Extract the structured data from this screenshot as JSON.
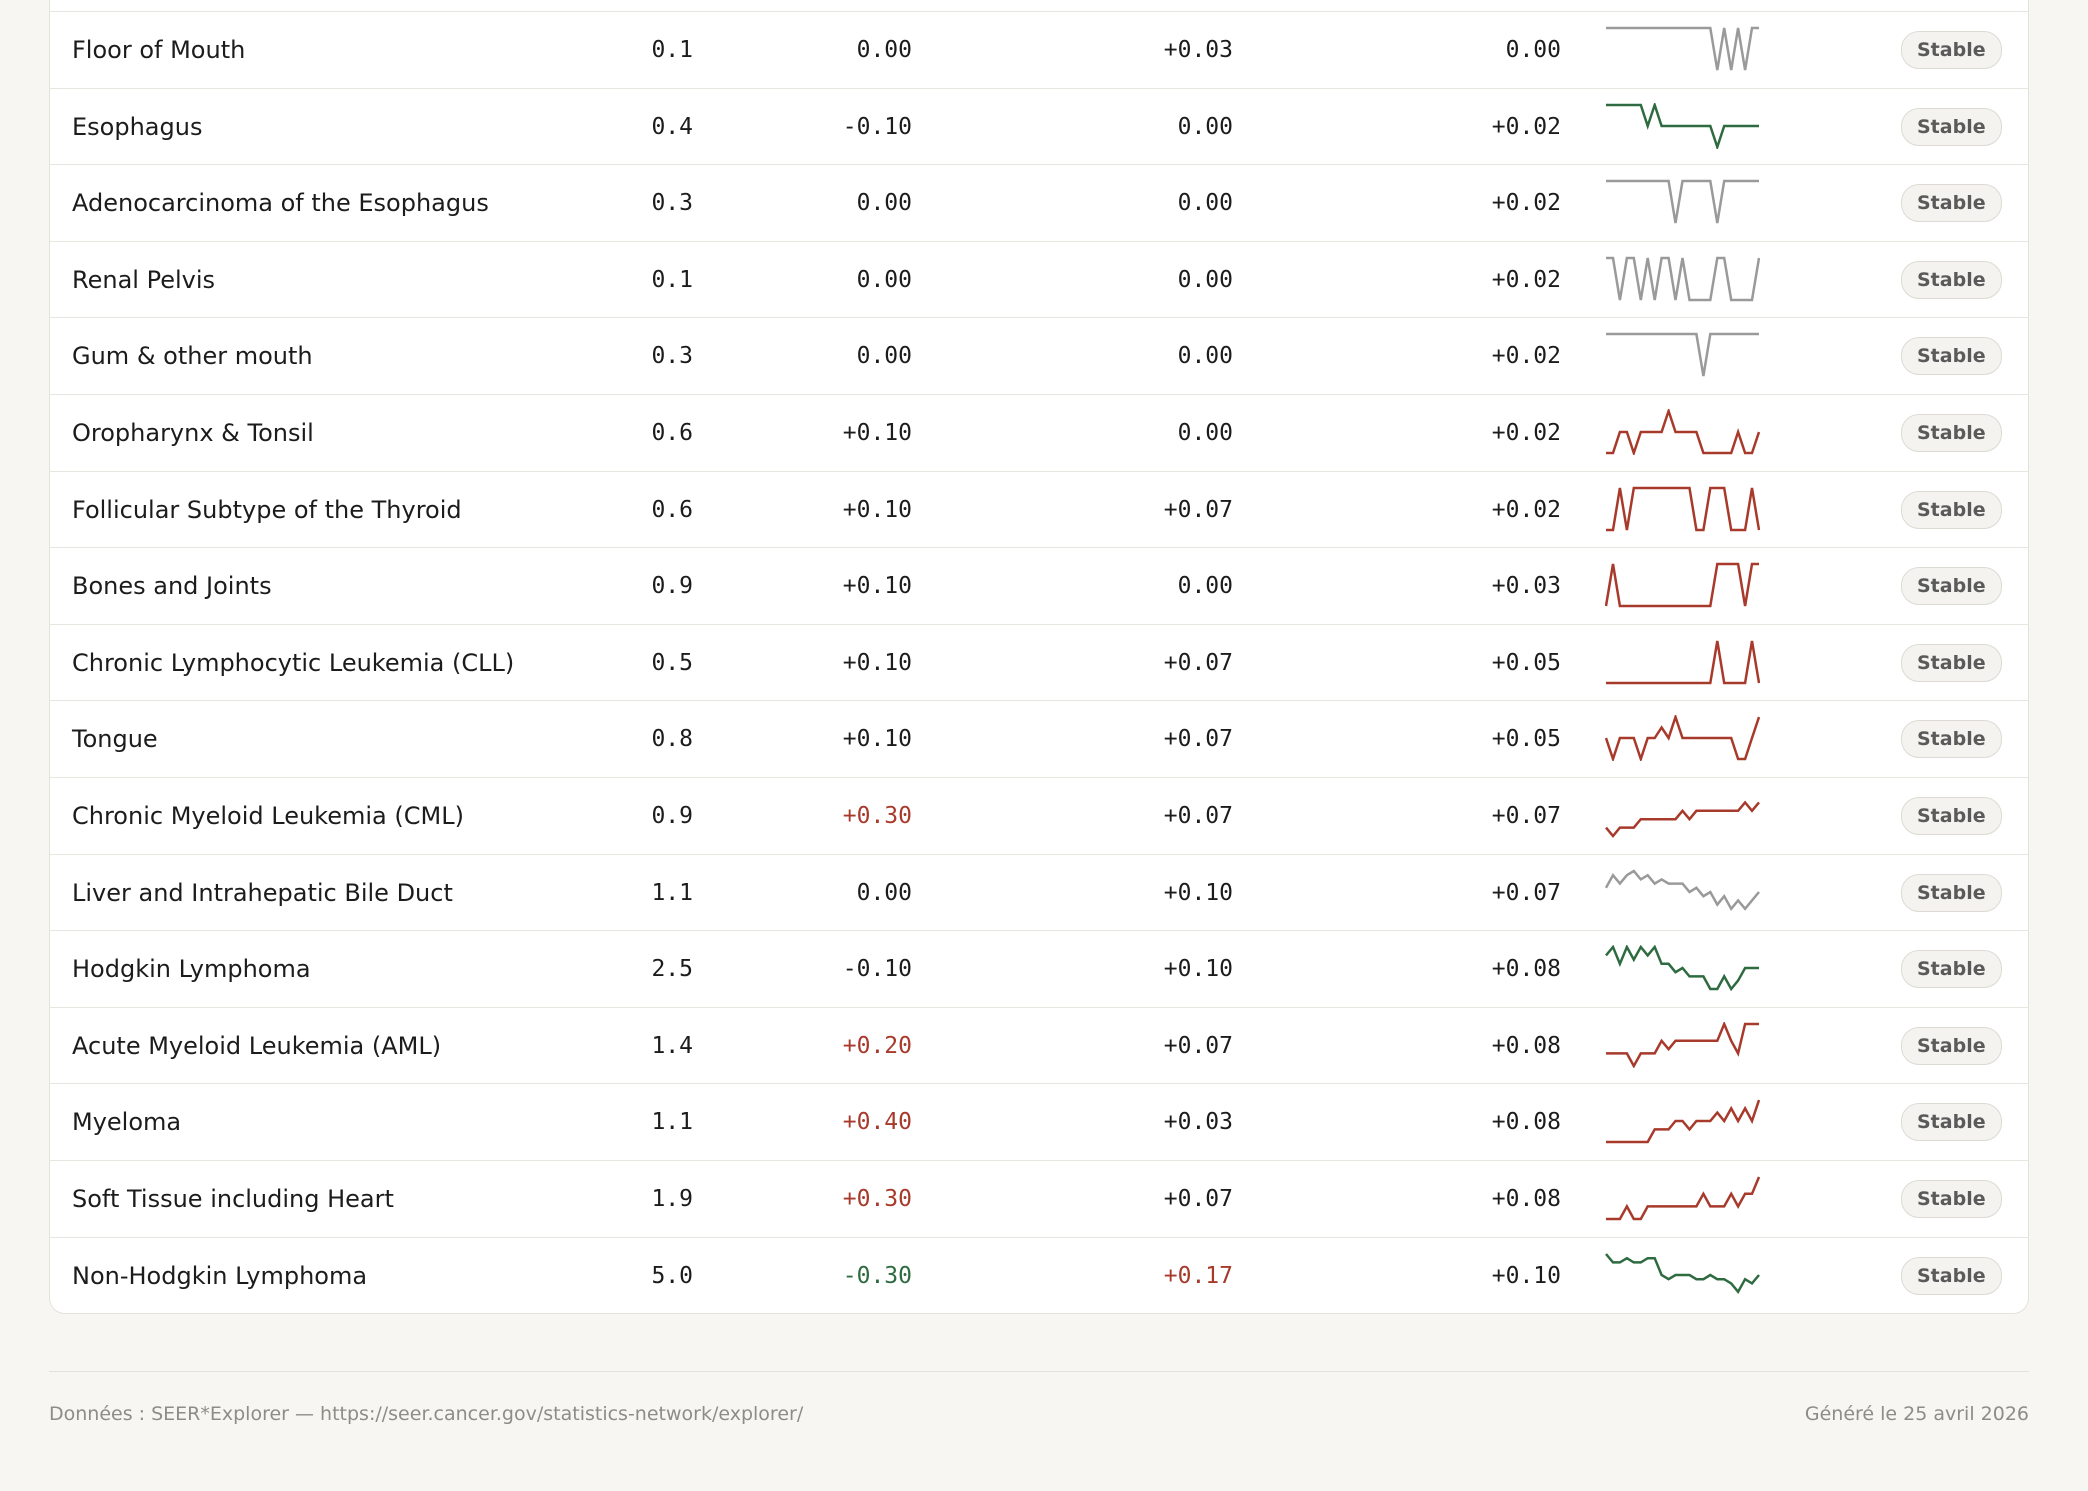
{
  "colors": {
    "up": "#a83a2c",
    "down": "#2f6b40",
    "flat": "#9a9a9a"
  },
  "rows": [
    {
      "name": "Floor of Mouth",
      "rate": "0.1",
      "c2": "0.00",
      "c2_tone": "neutral",
      "c3": "+0.03",
      "c3_tone": "neutral",
      "c4": "0.00",
      "status": "Stable",
      "spark_trend": "flat",
      "spark": [
        1,
        1,
        1,
        1,
        1,
        1,
        1,
        1,
        1,
        1,
        1,
        1,
        1,
        1,
        1,
        1,
        0,
        1,
        0,
        1,
        0,
        1,
        1
      ]
    },
    {
      "name": "Esophagus",
      "rate": "0.4",
      "c2": "-0.10",
      "c2_tone": "neutral",
      "c3": "0.00",
      "c3_tone": "neutral",
      "c4": "+0.02",
      "status": "Stable",
      "spark_trend": "down",
      "spark": [
        1,
        1,
        1,
        1,
        1,
        1,
        0.5,
        1,
        0.5,
        0.5,
        0.5,
        0.5,
        0.5,
        0.5,
        0.5,
        0.5,
        0,
        0.5,
        0.5,
        0.5,
        0.5,
        0.5,
        0.5
      ]
    },
    {
      "name": "Adenocarcinoma of the Esophagus",
      "rate": "0.3",
      "c2": "0.00",
      "c2_tone": "neutral",
      "c3": "0.00",
      "c3_tone": "neutral",
      "c4": "+0.02",
      "status": "Stable",
      "spark_trend": "flat",
      "spark": [
        1,
        1,
        1,
        1,
        1,
        1,
        1,
        1,
        1,
        1,
        0,
        1,
        1,
        1,
        1,
        1,
        0,
        1,
        1,
        1,
        1,
        1,
        1
      ]
    },
    {
      "name": "Renal Pelvis",
      "rate": "0.1",
      "c2": "0.00",
      "c2_tone": "neutral",
      "c3": "0.00",
      "c3_tone": "neutral",
      "c4": "+0.02",
      "status": "Stable",
      "spark_trend": "flat",
      "spark": [
        1,
        1,
        0,
        1,
        1,
        0,
        1,
        0,
        1,
        1,
        0,
        1,
        0,
        0,
        0,
        0,
        1,
        1,
        0,
        0,
        0,
        0,
        1
      ]
    },
    {
      "name": "Gum & other mouth",
      "rate": "0.3",
      "c2": "0.00",
      "c2_tone": "neutral",
      "c3": "0.00",
      "c3_tone": "neutral",
      "c4": "+0.02",
      "status": "Stable",
      "spark_trend": "flat",
      "spark": [
        1,
        1,
        1,
        1,
        1,
        1,
        1,
        1,
        1,
        1,
        1,
        1,
        1,
        1,
        0,
        1,
        1,
        1,
        1,
        1,
        1,
        1,
        1
      ]
    },
    {
      "name": "Oropharynx & Tonsil",
      "rate": "0.6",
      "c2": "+0.10",
      "c2_tone": "neutral",
      "c3": "0.00",
      "c3_tone": "neutral",
      "c4": "+0.02",
      "status": "Stable",
      "spark_trend": "up",
      "spark": [
        0,
        0,
        0.5,
        0.5,
        0,
        0.5,
        0.5,
        0.5,
        0.5,
        1,
        0.5,
        0.5,
        0.5,
        0.5,
        0,
        0,
        0,
        0,
        0,
        0.5,
        0,
        0,
        0.5
      ]
    },
    {
      "name": "Follicular Subtype of the Thyroid",
      "rate": "0.6",
      "c2": "+0.10",
      "c2_tone": "neutral",
      "c3": "+0.07",
      "c3_tone": "neutral",
      "c4": "+0.02",
      "status": "Stable",
      "spark_trend": "up",
      "spark": [
        0,
        0,
        1,
        0,
        1,
        1,
        1,
        1,
        1,
        1,
        1,
        1,
        1,
        0,
        0,
        1,
        1,
        1,
        0,
        0,
        0,
        1,
        0
      ]
    },
    {
      "name": "Bones and Joints",
      "rate": "0.9",
      "c2": "+0.10",
      "c2_tone": "neutral",
      "c3": "0.00",
      "c3_tone": "neutral",
      "c4": "+0.03",
      "status": "Stable",
      "spark_trend": "up",
      "spark": [
        0,
        1,
        0,
        0,
        0,
        0,
        0,
        0,
        0,
        0,
        0,
        0,
        0,
        0,
        0,
        0,
        1,
        1,
        1,
        1,
        0,
        1,
        1
      ]
    },
    {
      "name": "Chronic Lymphocytic Leukemia (CLL)",
      "rate": "0.5",
      "c2": "+0.10",
      "c2_tone": "neutral",
      "c3": "+0.07",
      "c3_tone": "neutral",
      "c4": "+0.05",
      "status": "Stable",
      "spark_trend": "up",
      "spark": [
        0,
        0,
        0,
        0,
        0,
        0,
        0,
        0,
        0,
        0,
        0,
        0,
        0,
        0,
        0,
        0,
        1,
        0,
        0,
        0,
        0,
        1,
        0
      ]
    },
    {
      "name": "Tongue",
      "rate": "0.8",
      "c2": "+0.10",
      "c2_tone": "neutral",
      "c3": "+0.07",
      "c3_tone": "neutral",
      "c4": "+0.05",
      "status": "Stable",
      "spark_trend": "up",
      "spark": [
        0.5,
        0,
        0.5,
        0.5,
        0.5,
        0,
        0.5,
        0.5,
        0.75,
        0.5,
        1,
        0.5,
        0.5,
        0.5,
        0.5,
        0.5,
        0.5,
        0.5,
        0.5,
        0,
        0,
        0.5,
        1
      ]
    },
    {
      "name": "Chronic Myeloid Leukemia (CML)",
      "rate": "0.9",
      "c2": "+0.30",
      "c2_tone": "pos",
      "c3": "+0.07",
      "c3_tone": "neutral",
      "c4": "+0.07",
      "status": "Stable",
      "spark_trend": "up",
      "spark": [
        0.2,
        0,
        0.2,
        0.2,
        0.2,
        0.4,
        0.4,
        0.4,
        0.4,
        0.4,
        0.4,
        0.6,
        0.4,
        0.6,
        0.6,
        0.6,
        0.6,
        0.6,
        0.6,
        0.6,
        0.8,
        0.6,
        0.8
      ]
    },
    {
      "name": "Liver and Intrahepatic Bile Duct",
      "rate": "1.1",
      "c2": "0.00",
      "c2_tone": "neutral",
      "c3": "+0.10",
      "c3_tone": "neutral",
      "c4": "+0.07",
      "status": "Stable",
      "spark_trend": "flat",
      "spark": [
        0.6,
        0.9,
        0.7,
        0.9,
        1,
        0.8,
        0.9,
        0.7,
        0.8,
        0.7,
        0.7,
        0.7,
        0.5,
        0.6,
        0.4,
        0.5,
        0.2,
        0.4,
        0.1,
        0.3,
        0.1,
        0.3,
        0.5
      ]
    },
    {
      "name": "Hodgkin Lymphoma",
      "rate": "2.5",
      "c2": "-0.10",
      "c2_tone": "neutral",
      "c3": "+0.10",
      "c3_tone": "neutral",
      "c4": "+0.08",
      "status": "Stable",
      "spark_trend": "down",
      "spark": [
        0.8,
        1,
        0.6,
        1,
        0.7,
        1,
        0.8,
        1,
        0.6,
        0.6,
        0.4,
        0.5,
        0.3,
        0.3,
        0.3,
        0,
        0,
        0.3,
        0,
        0.2,
        0.5,
        0.5,
        0.5
      ]
    },
    {
      "name": "Acute Myeloid Leukemia (AML)",
      "rate": "1.4",
      "c2": "+0.20",
      "c2_tone": "pos",
      "c3": "+0.07",
      "c3_tone": "neutral",
      "c4": "+0.08",
      "status": "Stable",
      "spark_trend": "up",
      "spark": [
        0.3,
        0.3,
        0.3,
        0.3,
        0,
        0.3,
        0.3,
        0.3,
        0.6,
        0.4,
        0.6,
        0.6,
        0.6,
        0.6,
        0.6,
        0.6,
        0.6,
        1,
        0.6,
        0.3,
        1,
        1,
        1
      ]
    },
    {
      "name": "Myeloma",
      "rate": "1.1",
      "c2": "+0.40",
      "c2_tone": "pos",
      "c3": "+0.03",
      "c3_tone": "neutral",
      "c4": "+0.08",
      "status": "Stable",
      "spark_trend": "up",
      "spark": [
        0,
        0,
        0,
        0,
        0,
        0,
        0,
        0.3,
        0.3,
        0.3,
        0.5,
        0.5,
        0.3,
        0.5,
        0.5,
        0.5,
        0.7,
        0.5,
        0.8,
        0.5,
        0.8,
        0.5,
        1
      ]
    },
    {
      "name": "Soft Tissue including Heart",
      "rate": "1.9",
      "c2": "+0.30",
      "c2_tone": "pos",
      "c3": "+0.07",
      "c3_tone": "neutral",
      "c4": "+0.08",
      "status": "Stable",
      "spark_trend": "up",
      "spark": [
        0,
        0,
        0,
        0.3,
        0,
        0,
        0.3,
        0.3,
        0.3,
        0.3,
        0.3,
        0.3,
        0.3,
        0.3,
        0.6,
        0.3,
        0.3,
        0.3,
        0.6,
        0.3,
        0.6,
        0.6,
        1
      ]
    },
    {
      "name": "Non-Hodgkin Lymphoma",
      "rate": "5.0",
      "c2": "-0.30",
      "c2_tone": "neg",
      "c3": "+0.17",
      "c3_tone": "pos",
      "c4": "+0.10",
      "status": "Stable",
      "spark_trend": "down",
      "spark": [
        1,
        0.8,
        0.8,
        0.9,
        0.8,
        0.8,
        0.9,
        0.9,
        0.5,
        0.4,
        0.5,
        0.5,
        0.5,
        0.4,
        0.4,
        0.5,
        0.4,
        0.4,
        0.3,
        0.1,
        0.4,
        0.3,
        0.5
      ]
    }
  ],
  "footer": {
    "source": "Données : SEER*Explorer — https://seer.cancer.gov/statistics-network/explorer/",
    "generated": "Généré le 25 avril 2026"
  }
}
